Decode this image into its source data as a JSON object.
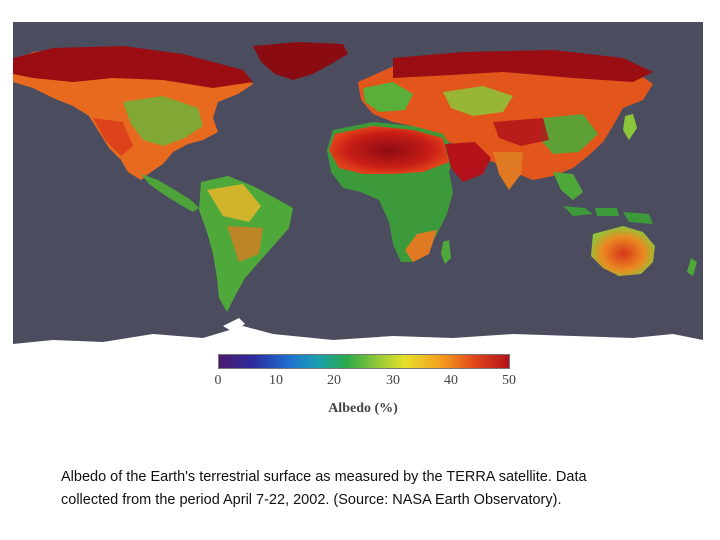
{
  "colors": {
    "ocean": "#4b4d5e",
    "ice": "#ffffff",
    "low": "#3aa03a",
    "mid": "#e8c02a",
    "high": "#e0401a",
    "highest": "#8e0c12"
  },
  "colorbar": {
    "ticks": [
      "0",
      "10",
      "20",
      "30",
      "40",
      "50"
    ],
    "label": "Albedo (%)"
  },
  "caption": {
    "line1": "Albedo of the Earth's terrestrial surface as measured by the TERRA satellite. Data",
    "line2": "collected from the period April 7-22, 2002. (Source: NASA Earth Observatory)."
  }
}
